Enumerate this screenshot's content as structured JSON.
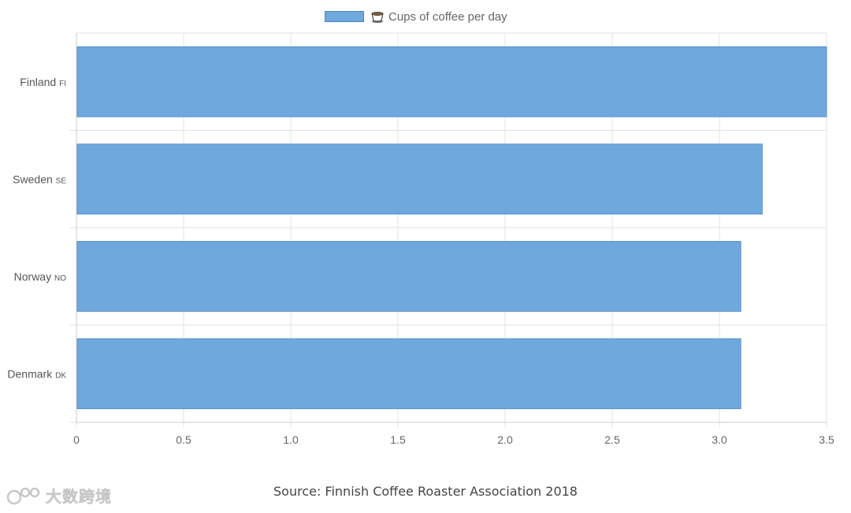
{
  "legend": {
    "label": "Cups of coffee per day",
    "icon": "coffee-cup-icon"
  },
  "source": "Source: Finnish Coffee Roaster Association 2018",
  "watermark": {
    "text": "大数跨境",
    "icon": "watermark-logo-icon"
  },
  "colors": {
    "bar_fill": "#6fa8dc",
    "bar_stroke": "#4a86c8",
    "grid": "#e3e3e3",
    "axis": "#cccccc"
  },
  "chart_data": {
    "type": "bar",
    "orientation": "horizontal",
    "categories": [
      {
        "name": "Finland",
        "code": "FI"
      },
      {
        "name": "Sweden",
        "code": "SE"
      },
      {
        "name": "Norway",
        "code": "NO"
      },
      {
        "name": "Denmark",
        "code": "DK"
      }
    ],
    "series": [
      {
        "name": "Cups of coffee per day",
        "values": [
          3.5,
          3.2,
          3.1,
          3.1
        ]
      }
    ],
    "xlim": [
      0,
      3.5
    ],
    "xticks": [
      "0",
      "0.5",
      "1.0",
      "1.5",
      "2.0",
      "2.5",
      "3.0",
      "3.5"
    ],
    "xtick_values": [
      0,
      0.5,
      1.0,
      1.5,
      2.0,
      2.5,
      3.0,
      3.5
    ],
    "grid": true,
    "legend_position": "top-center"
  }
}
